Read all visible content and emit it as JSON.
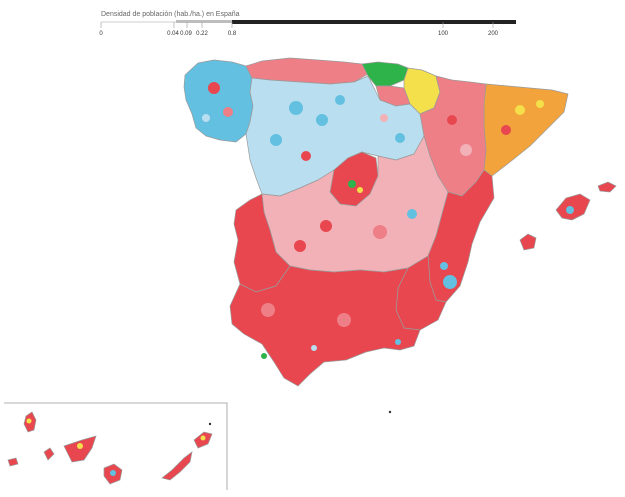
{
  "legend": {
    "title": "Densidad de población (hab./ha.) en España",
    "ticks": [
      "0",
      "0.04",
      "0.09",
      "0.22",
      "0.8",
      "100",
      "200"
    ]
  },
  "colors": {
    "red": "#e8474f",
    "red_light": "#ee7f86",
    "pink": "#f2b0b7",
    "blue": "#63c0e0",
    "blue_light": "#b8def0",
    "orange": "#f2a33c",
    "yellow": "#f4e04a",
    "green": "#2db34a",
    "border": "#9a9a9a",
    "legend_bar": "#222222"
  },
  "regions": [
    {
      "name": "galicia",
      "color": "blue"
    },
    {
      "name": "asturias-cantabria",
      "color": "red_light"
    },
    {
      "name": "pais-vasco",
      "color": "green"
    },
    {
      "name": "navarra",
      "color": "yellow"
    },
    {
      "name": "cataluna",
      "color": "orange"
    },
    {
      "name": "castilla-leon",
      "color": "blue_light"
    },
    {
      "name": "aragon",
      "color": "red_light"
    },
    {
      "name": "madrid",
      "color": "red"
    },
    {
      "name": "castilla-la-mancha",
      "color": "pink"
    },
    {
      "name": "extremadura",
      "color": "red"
    },
    {
      "name": "valencia",
      "color": "red"
    },
    {
      "name": "murcia",
      "color": "red"
    },
    {
      "name": "andalucia",
      "color": "red"
    },
    {
      "name": "baleares",
      "color": "red"
    },
    {
      "name": "canarias",
      "color": "red"
    }
  ]
}
